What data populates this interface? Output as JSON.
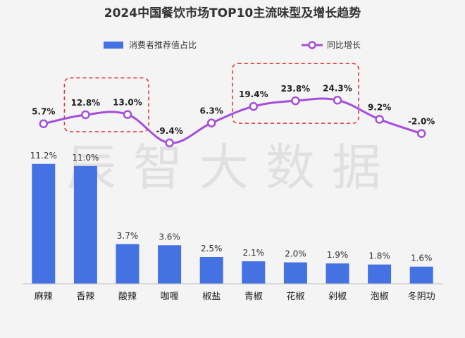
{
  "chart_data": {
    "type": "bar",
    "title": "2024中国餐饮市场TOP10主流味型及增长趋势",
    "categories": [
      "麻辣",
      "香辣",
      "酸辣",
      "咖喱",
      "椒盐",
      "青椒",
      "花椒",
      "剁椒",
      "泡椒",
      "冬阴功"
    ],
    "series": [
      {
        "name": "消费者推荐值占比",
        "type": "bar",
        "values": [
          11.2,
          11.0,
          3.7,
          3.6,
          2.5,
          2.1,
          2.0,
          1.9,
          1.8,
          1.6
        ],
        "labels": [
          "11.2%",
          "11.0%",
          "3.7%",
          "3.6%",
          "2.5%",
          "2.1%",
          "2.0%",
          "1.9%",
          "1.8%",
          "1.6%"
        ],
        "color": "#4472e3"
      },
      {
        "name": "同比增长",
        "type": "line",
        "values": [
          5.7,
          12.8,
          13.0,
          -9.4,
          6.3,
          19.4,
          23.8,
          24.3,
          9.2,
          -2.0
        ],
        "labels": [
          "5.7%",
          "12.8%",
          "13.0%",
          "-9.4%",
          "6.3%",
          "19.4%",
          "23.8%",
          "24.3%",
          "9.2%",
          "-2.0%"
        ],
        "color": "#a54fd8"
      }
    ],
    "highlight_groups": [
      [
        1,
        2
      ],
      [
        5,
        6,
        7
      ]
    ],
    "highlight_color": "#e03030",
    "legend_position": "top",
    "grid": false
  },
  "watermark": "辰智大数据"
}
